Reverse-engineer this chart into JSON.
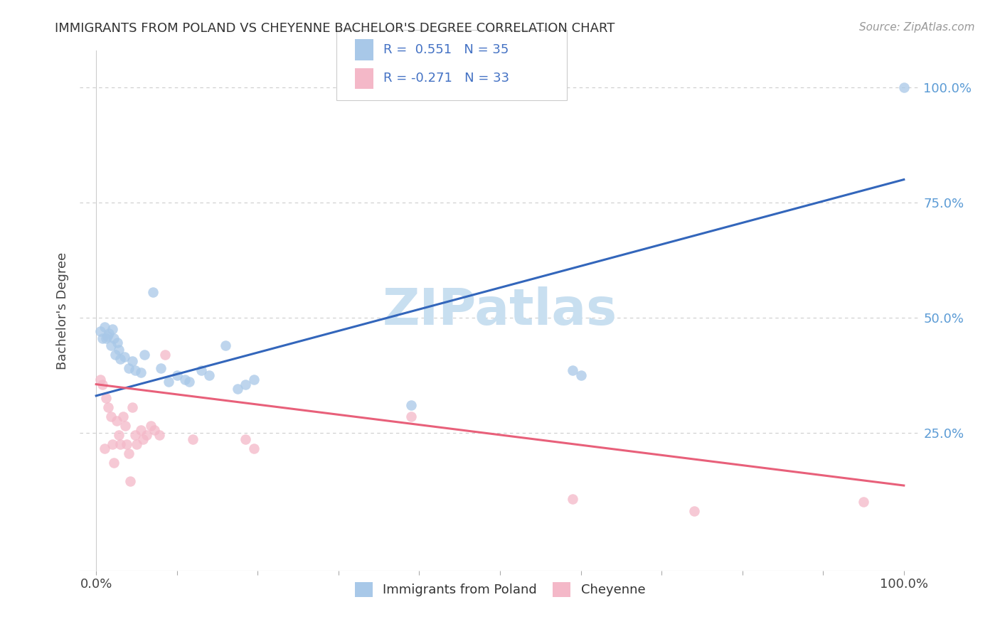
{
  "title": "IMMIGRANTS FROM POLAND VS CHEYENNE BACHELOR'S DEGREE CORRELATION CHART",
  "source": "Source: ZipAtlas.com",
  "ylabel": "Bachelor's Degree",
  "xlim": [
    -0.02,
    1.02
  ],
  "ylim": [
    -0.05,
    1.08
  ],
  "r_blue": 0.551,
  "n_blue": 35,
  "r_pink": -0.271,
  "n_pink": 33,
  "blue_color": "#a8c8e8",
  "pink_color": "#f4b8c8",
  "line_blue": "#3366bb",
  "line_pink": "#e8607a",
  "watermark": "ZIPatlas",
  "watermark_color": "#c8dff0",
  "grid_color": "#cccccc",
  "right_tick_color": "#5b9bd5",
  "blue_line_y0": 0.33,
  "blue_line_y1": 0.8,
  "pink_line_y0": 0.355,
  "pink_line_y1": 0.135,
  "blue_dots": [
    [
      0.005,
      0.47
    ],
    [
      0.008,
      0.455
    ],
    [
      0.01,
      0.48
    ],
    [
      0.012,
      0.455
    ],
    [
      0.014,
      0.46
    ],
    [
      0.016,
      0.465
    ],
    [
      0.018,
      0.44
    ],
    [
      0.02,
      0.475
    ],
    [
      0.022,
      0.455
    ],
    [
      0.024,
      0.42
    ],
    [
      0.026,
      0.445
    ],
    [
      0.028,
      0.43
    ],
    [
      0.03,
      0.41
    ],
    [
      0.035,
      0.415
    ],
    [
      0.04,
      0.39
    ],
    [
      0.045,
      0.405
    ],
    [
      0.048,
      0.385
    ],
    [
      0.055,
      0.38
    ],
    [
      0.06,
      0.42
    ],
    [
      0.07,
      0.555
    ],
    [
      0.08,
      0.39
    ],
    [
      0.09,
      0.36
    ],
    [
      0.1,
      0.375
    ],
    [
      0.11,
      0.365
    ],
    [
      0.115,
      0.36
    ],
    [
      0.13,
      0.385
    ],
    [
      0.14,
      0.375
    ],
    [
      0.16,
      0.44
    ],
    [
      0.175,
      0.345
    ],
    [
      0.185,
      0.355
    ],
    [
      0.195,
      0.365
    ],
    [
      0.39,
      0.31
    ],
    [
      0.59,
      0.385
    ],
    [
      0.6,
      0.375
    ],
    [
      1.0,
      1.0
    ]
  ],
  "pink_dots": [
    [
      0.005,
      0.365
    ],
    [
      0.008,
      0.355
    ],
    [
      0.01,
      0.215
    ],
    [
      0.012,
      0.325
    ],
    [
      0.015,
      0.305
    ],
    [
      0.018,
      0.285
    ],
    [
      0.02,
      0.225
    ],
    [
      0.022,
      0.185
    ],
    [
      0.025,
      0.275
    ],
    [
      0.028,
      0.245
    ],
    [
      0.03,
      0.225
    ],
    [
      0.033,
      0.285
    ],
    [
      0.036,
      0.265
    ],
    [
      0.038,
      0.225
    ],
    [
      0.04,
      0.205
    ],
    [
      0.042,
      0.145
    ],
    [
      0.045,
      0.305
    ],
    [
      0.048,
      0.245
    ],
    [
      0.05,
      0.225
    ],
    [
      0.055,
      0.255
    ],
    [
      0.058,
      0.235
    ],
    [
      0.062,
      0.245
    ],
    [
      0.068,
      0.265
    ],
    [
      0.072,
      0.255
    ],
    [
      0.078,
      0.245
    ],
    [
      0.085,
      0.42
    ],
    [
      0.12,
      0.235
    ],
    [
      0.185,
      0.235
    ],
    [
      0.195,
      0.215
    ],
    [
      0.39,
      0.285
    ],
    [
      0.59,
      0.105
    ],
    [
      0.74,
      0.08
    ],
    [
      0.95,
      0.1
    ]
  ]
}
